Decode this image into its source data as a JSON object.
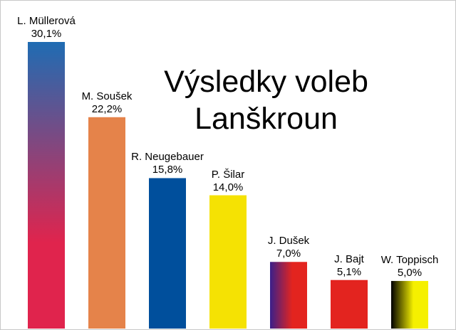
{
  "chart_data": {
    "type": "bar",
    "title_lines": [
      "Výsledky voleb",
      "Lanškroun"
    ],
    "categories": [
      "L. Müllerová",
      "M. Soušek",
      "R. Neugebauer",
      "P. Šilar",
      "J. Dušek",
      "J. Bajt",
      "W. Toppisch"
    ],
    "values": [
      30.1,
      22.2,
      15.8,
      14.0,
      7.0,
      5.1,
      5.0
    ],
    "value_labels": [
      "30,1%",
      "22,2%",
      "15,8%",
      "14,0%",
      "7,0%",
      "5,1%",
      "5,0%"
    ],
    "ylim": [
      0,
      30.1
    ],
    "grid": false,
    "legend": "none",
    "bar_colors": [
      [
        "#1f6cb3",
        "#e0244d"
      ],
      [
        "#e5834a"
      ],
      [
        "#004f9c"
      ],
      [
        "#f5e203"
      ],
      [
        "#3a1f8a",
        "#e3241f"
      ],
      [
        "#e3241f"
      ],
      [
        "#000000",
        "#f5f000"
      ]
    ]
  }
}
